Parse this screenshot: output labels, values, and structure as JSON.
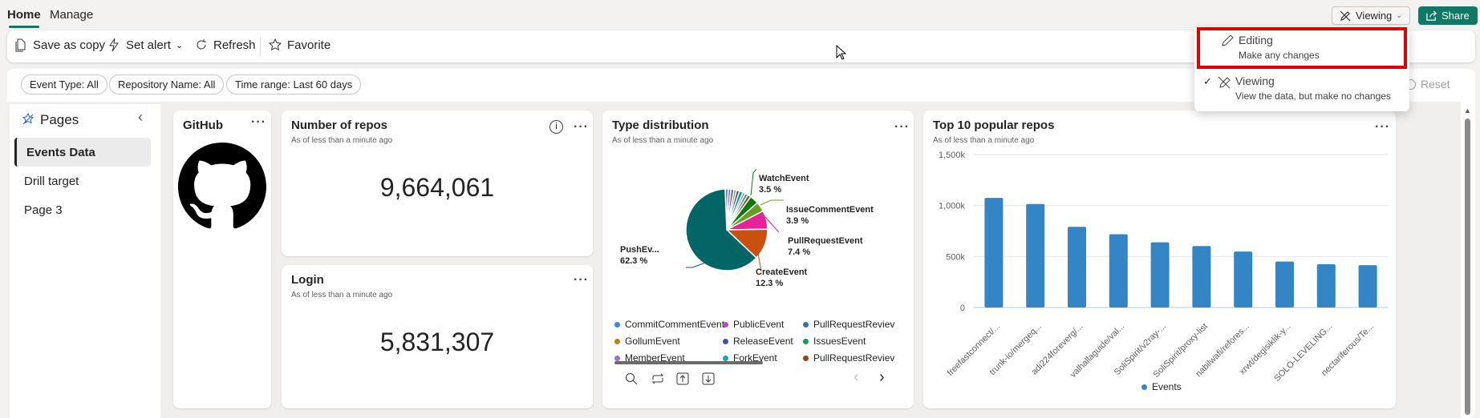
{
  "tabs": [
    {
      "label": "Home",
      "active": true
    },
    {
      "label": "Manage",
      "active": false
    }
  ],
  "header": {
    "viewing_label": "Viewing",
    "share_label": "Share",
    "accent": "#117865"
  },
  "toolbar": {
    "save_copy": "Save as copy",
    "set_alert": "Set alert",
    "refresh": "Refresh",
    "favorite": "Favorite"
  },
  "filters": [
    {
      "label": "Event Type: All"
    },
    {
      "label": "Repository Name: All"
    },
    {
      "label": "Time range: Last 60 days"
    }
  ],
  "reset_label": "Reset",
  "mode_menu": {
    "items": [
      {
        "title": "Editing",
        "subtitle": "Make any changes",
        "icon": "pencil-icon",
        "checked": false,
        "highlighted": true
      },
      {
        "title": "Viewing",
        "subtitle": "View the data, but make no changes",
        "icon": "pencil-off-icon",
        "checked": true
      }
    ],
    "highlight_color": "#e00000"
  },
  "pages": {
    "title": "Pages",
    "items": [
      {
        "label": "Events Data",
        "active": true
      },
      {
        "label": "Drill target"
      },
      {
        "label": "Page 3"
      }
    ]
  },
  "cards": {
    "github": {
      "title": "GitHub"
    },
    "repos": {
      "title": "Number of repos",
      "subtitle": "As of less than a minute ago",
      "value": "9,664,061"
    },
    "login": {
      "title": "Login",
      "subtitle": "As of less than a minute ago",
      "value": "5,831,307"
    },
    "types": {
      "title": "Type distribution",
      "subtitle": "As of less than a minute ago"
    },
    "top": {
      "title": "Top 10 popular repos",
      "subtitle": "As of less than a minute ago"
    }
  },
  "chart_data": [
    {
      "type": "pie",
      "slice_labels": [
        {
          "name": "WatchEvent",
          "pct": "3.5 %"
        },
        {
          "name": "IssueCommentEvent",
          "pct": "3.9 %"
        },
        {
          "name": "PullRequestEvent",
          "pct": "7.4 %"
        },
        {
          "name": "CreateEvent",
          "pct": "12.3 %"
        },
        {
          "name": "PushEv...",
          "pct": "62.3 %"
        }
      ],
      "slices": [
        {
          "name": "CommitCommentEvent",
          "value": 1.2,
          "color": "#3a8ad0"
        },
        {
          "name": "PublicEvent",
          "value": 1.1,
          "color": "#b44fc6"
        },
        {
          "name": "PullRequestReviewEvent",
          "value": 1.2,
          "color": "#3572a8"
        },
        {
          "name": "GollumEvent",
          "value": 1.0,
          "color": "#b8860b"
        },
        {
          "name": "ReleaseEvent",
          "value": 1.2,
          "color": "#3f51b5"
        },
        {
          "name": "IssuesEvent",
          "value": 1.4,
          "color": "#0f9d58"
        },
        {
          "name": "MemberEvent",
          "value": 1.0,
          "color": "#9575cd"
        },
        {
          "name": "ForkEvent",
          "value": 1.2,
          "color": "#17a2b8"
        },
        {
          "name": "PullRequestReviewCommentEvent",
          "value": 1.3,
          "color": "#a0410d"
        },
        {
          "name": "WatchEvent",
          "value": 3.5,
          "color": "#0b7a0b"
        },
        {
          "name": "IssueCommentEvent",
          "value": 3.9,
          "color": "#6a9e22"
        },
        {
          "name": "PullRequestEvent",
          "value": 7.4,
          "color": "#e3249a"
        },
        {
          "name": "CreateEvent",
          "value": 12.3,
          "color": "#ca5010"
        },
        {
          "name": "PushEvent",
          "value": 62.3,
          "color": "#036565"
        }
      ],
      "legend": [
        {
          "name": "CommitCommentEvent",
          "color": "#3a8ad0"
        },
        {
          "name": "PublicEvent",
          "color": "#b44fc6"
        },
        {
          "name": "PullRequestReviev",
          "color": "#3572a8"
        },
        {
          "name": "GollumEvent",
          "color": "#b8860b"
        },
        {
          "name": "ReleaseEvent",
          "color": "#3f51b5"
        },
        {
          "name": "IssuesEvent",
          "color": "#0f9d58"
        },
        {
          "name": "MemberEvent",
          "color": "#9575cd"
        },
        {
          "name": "ForkEvent",
          "color": "#17a2b8"
        },
        {
          "name": "PullRequestReviev",
          "color": "#a0410d"
        }
      ]
    },
    {
      "type": "bar",
      "categories": [
        "freefastconnect/...",
        "trunk-io/mergeq...",
        "adi224foreverg/...",
        "valhallaguide/val...",
        "SoliSpirit/v2ray-...",
        "SoliSpirit/proxy-list",
        "nabilwafi/refores...",
        "xrwt/degisiklik-y...",
        "SOLO-LEVELING...",
        "nectariferous/Te..."
      ],
      "series": [
        {
          "name": "Events",
          "values": [
            1075000,
            1015000,
            791000,
            719000,
            639000,
            603000,
            549000,
            451000,
            424000,
            415000
          ],
          "color": "#3385c6"
        }
      ],
      "yticks": [
        "0",
        "500k",
        "1,000k",
        "1,500k"
      ],
      "ylim": [
        0,
        1500000
      ],
      "grid": true,
      "legend_position": "bottom"
    }
  ]
}
